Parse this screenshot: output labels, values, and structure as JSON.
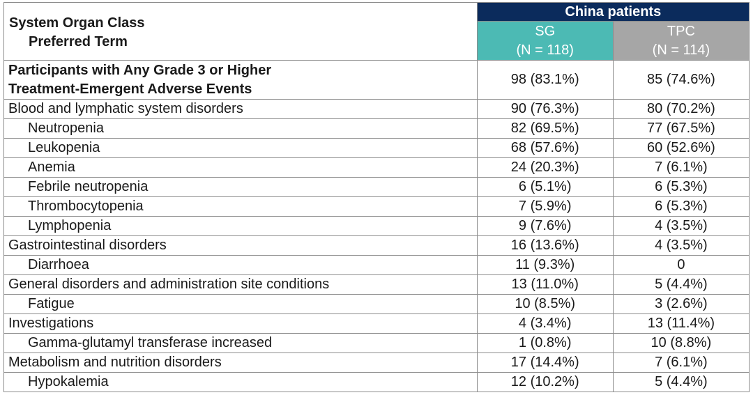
{
  "header": {
    "corner": [
      "System Organ Class",
      "Preferred Term"
    ],
    "group": "China patients",
    "columns": [
      {
        "name": "SG",
        "n": "(N = 118)"
      },
      {
        "name": "TPC",
        "n": "(N = 114)"
      }
    ]
  },
  "table": {
    "rows": [
      [
        [
          "Participants with Any Grade 3 or Higher",
          "Treatment-Emergent Adverse Events"
        ],
        "98 (83.1%)",
        "85 (74.6%)"
      ],
      [
        "Blood and lymphatic system disorders",
        "90 (76.3%)",
        "80 (70.2%)"
      ],
      [
        "Neutropenia",
        "82 (69.5%)",
        "77 (67.5%)"
      ],
      [
        "Leukopenia",
        "68 (57.6%)",
        "60 (52.6%)"
      ],
      [
        "Anemia",
        "24 (20.3%)",
        "7 (6.1%)"
      ],
      [
        "Febrile neutropenia",
        "6 (5.1%)",
        "6 (5.3%)"
      ],
      [
        "Thrombocytopenia",
        "7 (5.9%)",
        "6 (5.3%)"
      ],
      [
        "Lymphopenia",
        "9 (7.6%)",
        "4 (3.5%)"
      ],
      [
        "Gastrointestinal disorders",
        "16 (13.6%)",
        "4 (3.5%)"
      ],
      [
        "Diarrhoea",
        "11 (9.3%)",
        "0"
      ],
      [
        "General disorders and administration site conditions",
        "13 (11.0%)",
        "5 (4.4%)"
      ],
      [
        "Fatigue",
        "10 (8.5%)",
        "3 (2.6%)"
      ],
      [
        "Investigations",
        "4 (3.4%)",
        "13 (11.4%)"
      ],
      [
        "Gamma-glutamyl transferase increased",
        "1 (0.8%)",
        "10 (8.8%)"
      ],
      [
        "Metabolism and nutrition disorders",
        "17 (14.4%)",
        "7 (6.1%)"
      ],
      [
        "Hypokalemia",
        "12 (10.2%)",
        "5 (4.4%)"
      ]
    ]
  }
}
